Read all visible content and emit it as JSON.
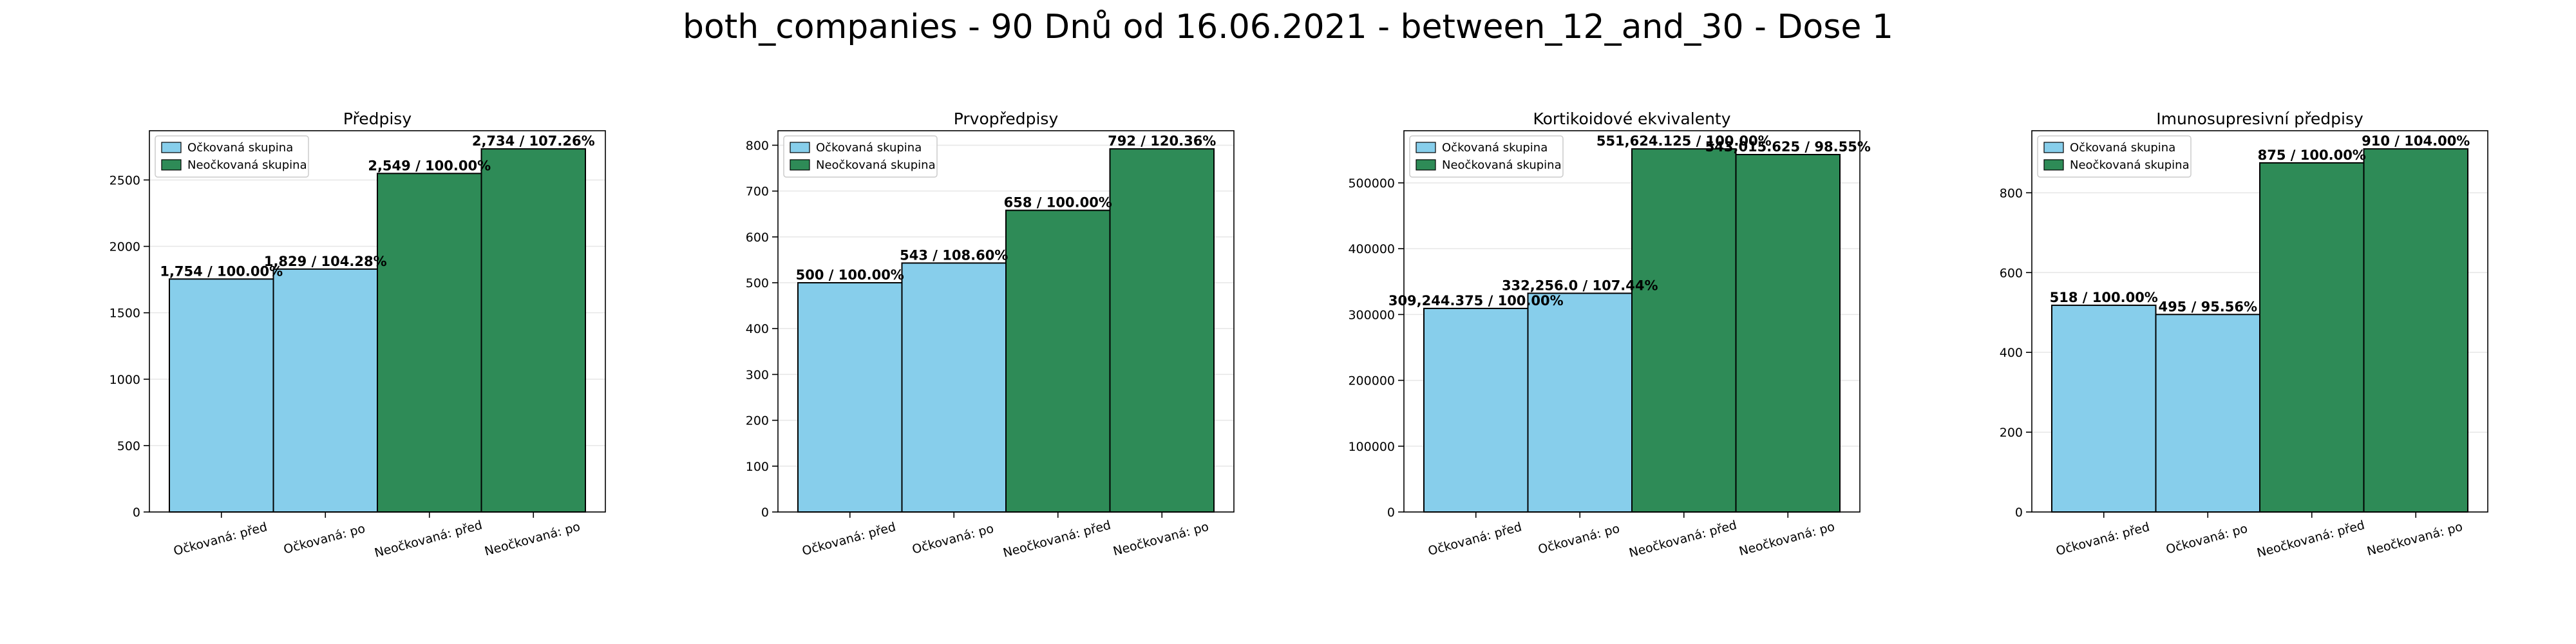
{
  "figure": {
    "title": "both_companies - 90 Dnů od 16.06.2021 - between_12_and_30 - Dose 1"
  },
  "colors": {
    "vaccinated": "#87CEEB",
    "unvaccinated": "#2E8B57",
    "edge": "#000000",
    "grid": "#e6e6e6"
  },
  "legend_labels": [
    "Očkovaná skupina",
    "Neočkovaná skupina"
  ],
  "chart_data": [
    {
      "type": "bar",
      "title": "Předpisy",
      "categories": [
        "Očkovaná: před",
        "Očkovaná: po",
        "Neočkovaná: před",
        "Neočkovaná: po"
      ],
      "values": [
        1754,
        1829,
        2549,
        2734
      ],
      "data_labels": [
        "1,754 / 100.00%",
        "1,829 / 104.28%",
        "2,549 / 100.00%",
        "2,734 / 107.26%"
      ],
      "group": [
        "vaccinated",
        "vaccinated",
        "unvaccinated",
        "unvaccinated"
      ],
      "ylim": [
        0,
        2870.7
      ],
      "yticks": [
        0,
        500,
        1000,
        1500,
        2000,
        2500
      ],
      "ytick_labels": [
        "0",
        "500",
        "1000",
        "1500",
        "2000",
        "2500"
      ],
      "legend": "top-left",
      "grid": true
    },
    {
      "type": "bar",
      "title": "Prvopředpisy",
      "categories": [
        "Očkovaná: před",
        "Očkovaná: po",
        "Neočkovaná: před",
        "Neočkovaná: po"
      ],
      "values": [
        500,
        543,
        658,
        792
      ],
      "data_labels": [
        "500 / 100.00%",
        "543 / 108.60%",
        "658 / 100.00%",
        "792 / 120.36%"
      ],
      "group": [
        "vaccinated",
        "vaccinated",
        "unvaccinated",
        "unvaccinated"
      ],
      "ylim": [
        0,
        831.6
      ],
      "yticks": [
        0,
        100,
        200,
        300,
        400,
        500,
        600,
        700,
        800
      ],
      "ytick_labels": [
        "0",
        "100",
        "200",
        "300",
        "400",
        "500",
        "600",
        "700",
        "800"
      ],
      "legend": "top-left",
      "grid": true
    },
    {
      "type": "bar",
      "title": "Kortikoidové ekvivalenty",
      "categories": [
        "Očkovaná: před",
        "Očkovaná: po",
        "Neočkovaná: před",
        "Neočkovaná: po"
      ],
      "values": [
        309244.375,
        332256.0,
        551624.125,
        543015.625
      ],
      "data_labels": [
        "309,244.375 / 100.00%",
        "332,256.0 / 107.44%",
        "551,624.125 / 100.00%",
        "543,015.625 / 98.55%"
      ],
      "group": [
        "vaccinated",
        "vaccinated",
        "unvaccinated",
        "unvaccinated"
      ],
      "ylim": [
        0,
        579205.3
      ],
      "yticks": [
        0,
        100000,
        200000,
        300000,
        400000,
        500000
      ],
      "ytick_labels": [
        "0",
        "100000",
        "200000",
        "300000",
        "400000",
        "500000"
      ],
      "legend": "top-left",
      "grid": true
    },
    {
      "type": "bar",
      "title": "Imunosupresivní předpisy",
      "categories": [
        "Očkovaná: před",
        "Očkovaná: po",
        "Neočkovaná: před",
        "Neočkovaná: po"
      ],
      "values": [
        518,
        495,
        875,
        910
      ],
      "data_labels": [
        "518 / 100.00%",
        "495 / 95.56%",
        "875 / 100.00%",
        "910 / 104.00%"
      ],
      "group": [
        "vaccinated",
        "vaccinated",
        "unvaccinated",
        "unvaccinated"
      ],
      "ylim": [
        0,
        955.5
      ],
      "yticks": [
        0,
        200,
        400,
        600,
        800
      ],
      "ytick_labels": [
        "0",
        "200",
        "400",
        "600",
        "800"
      ],
      "legend": "top-left",
      "grid": true
    }
  ]
}
